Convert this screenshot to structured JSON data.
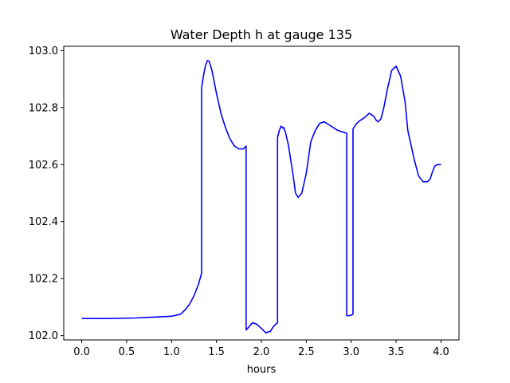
{
  "chart_data": {
    "type": "line",
    "title": "Water Depth h at gauge 135",
    "xlabel": "hours",
    "ylabel": "",
    "xlim": [
      -0.2,
      4.2
    ],
    "ylim": [
      101.985,
      103.015
    ],
    "x_ticks": [
      0.0,
      0.5,
      1.0,
      1.5,
      2.0,
      2.5,
      3.0,
      3.5,
      4.0
    ],
    "x_tick_labels": [
      "0.0",
      "0.5",
      "1.0",
      "1.5",
      "2.0",
      "2.5",
      "3.0",
      "3.5",
      "4.0"
    ],
    "y_ticks": [
      102.0,
      102.2,
      102.4,
      102.6,
      102.8,
      103.0
    ],
    "y_tick_labels": [
      "102.0",
      "102.2",
      "102.4",
      "102.6",
      "102.8",
      "103.0"
    ],
    "grid": false,
    "legend": "none",
    "series": [
      {
        "color": "#0000ff",
        "x": [
          0.0,
          0.3,
          0.6,
          0.8,
          1.0,
          1.1,
          1.15,
          1.2,
          1.25,
          1.3,
          1.335,
          1.335,
          1.36,
          1.38,
          1.4,
          1.42,
          1.45,
          1.5,
          1.55,
          1.6,
          1.65,
          1.7,
          1.75,
          1.8,
          1.83,
          1.83,
          1.86,
          1.9,
          1.95,
          2.0,
          2.05,
          2.1,
          2.13,
          2.16,
          2.18,
          2.18,
          2.2,
          2.22,
          2.24,
          2.25,
          2.27,
          2.3,
          2.35,
          2.38,
          2.41,
          2.45,
          2.5,
          2.55,
          2.6,
          2.65,
          2.7,
          2.75,
          2.8,
          2.85,
          2.9,
          2.93,
          2.95,
          2.95,
          2.98,
          3.0,
          3.02,
          3.02,
          3.05,
          3.08,
          3.1,
          3.15,
          3.2,
          3.25,
          3.28,
          3.3,
          3.33,
          3.36,
          3.4,
          3.45,
          3.5,
          3.55,
          3.6,
          3.63,
          3.7,
          3.75,
          3.8,
          3.85,
          3.88,
          3.9,
          3.93,
          3.96,
          4.0
        ],
        "y": [
          102.06,
          102.06,
          102.062,
          102.065,
          102.068,
          102.075,
          102.09,
          102.11,
          102.14,
          102.18,
          102.22,
          102.87,
          102.92,
          102.95,
          102.965,
          102.962,
          102.93,
          102.85,
          102.78,
          102.73,
          102.69,
          102.665,
          102.655,
          102.655,
          102.665,
          102.02,
          102.03,
          102.045,
          102.04,
          102.025,
          102.01,
          102.015,
          102.03,
          102.04,
          102.045,
          102.695,
          102.72,
          102.735,
          102.728,
          102.73,
          102.71,
          102.67,
          102.57,
          102.5,
          102.485,
          102.5,
          102.57,
          102.68,
          102.72,
          102.745,
          102.75,
          102.74,
          102.73,
          102.72,
          102.715,
          102.712,
          102.71,
          102.07,
          102.07,
          102.072,
          102.075,
          102.725,
          102.74,
          102.75,
          102.755,
          102.765,
          102.78,
          102.77,
          102.755,
          102.75,
          102.76,
          102.795,
          102.86,
          102.93,
          102.945,
          102.91,
          102.82,
          102.72,
          102.62,
          102.56,
          102.54,
          102.54,
          102.55,
          102.57,
          102.595,
          102.6,
          102.6
        ]
      }
    ]
  }
}
